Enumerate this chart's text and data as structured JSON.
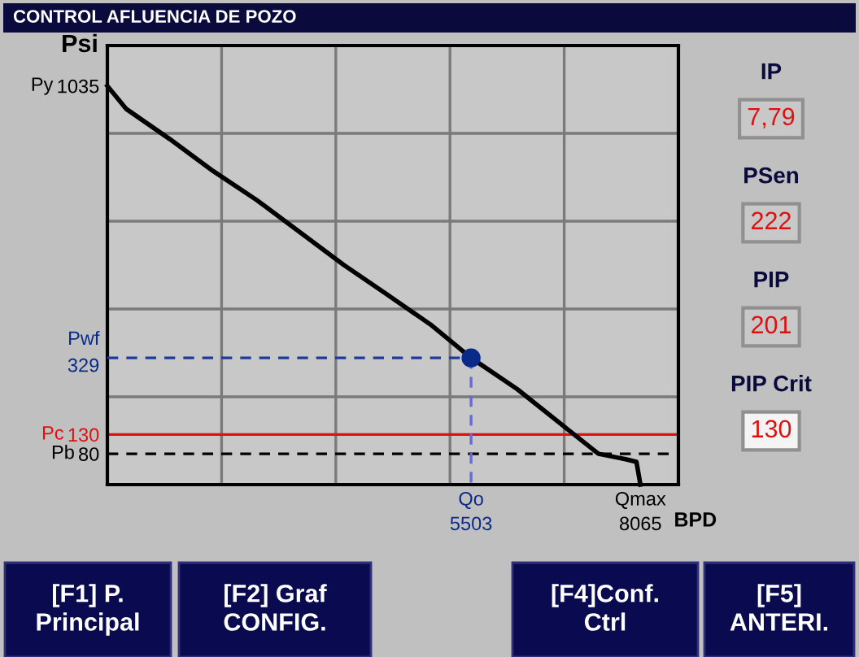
{
  "chart_data": [
    {
      "type": "line",
      "title": "CONTROL AFLUENCIA DE POZO",
      "xlabel": "BPD",
      "ylabel": "Psi",
      "xlim": [
        0,
        8640
      ],
      "ylim": [
        0,
        1140
      ],
      "xticks": [
        {
          "value": 1728,
          "label": null
        },
        {
          "value": 3456,
          "label": null
        },
        {
          "value": 5184,
          "label": null
        },
        {
          "value": 6912,
          "label": null
        },
        5503,
        8065
      ],
      "yticks": [
        {
          "value": 228,
          "label": null
        },
        {
          "value": 456,
          "label": null
        },
        {
          "value": 684,
          "label": null
        },
        {
          "value": 912,
          "label": null
        },
        1035,
        329,
        130,
        80
      ],
      "grid": true,
      "series": [
        {
          "type": "line",
          "color": "#000000",
          "x": [
            0,
            288,
            945,
            1601,
            2259,
            2916,
            3571,
            4229,
            4887,
            5503,
            6200,
            7020,
            7431,
            7842,
            8005,
            8065
          ],
          "values": [
            1035,
            975,
            897,
            814,
            739,
            655,
            571,
            494,
            416,
            329,
            248,
            136,
            80,
            66,
            59,
            0
          ]
        },
        {
          "type": "line",
          "color": "#1f3a9a",
          "line_style": "dashed",
          "x": [
            0,
            5503
          ],
          "values": [
            329,
            329
          ]
        },
        {
          "type": "line",
          "color": "#6a6ad0",
          "line_style": "dashed",
          "x": [
            5503,
            5503
          ],
          "values": [
            329,
            0
          ]
        },
        {
          "type": "scatter",
          "color": "#0a2a8a",
          "marker": "circle",
          "x": [
            5503
          ],
          "values": [
            329
          ]
        }
      ],
      "ref_lines": [
        {
          "axis": "y",
          "value": 130,
          "color": "#e01010",
          "line_style": "solid"
        },
        {
          "axis": "y",
          "value": 80,
          "color": "#000000",
          "line_style": "dashed"
        }
      ],
      "annotations": [
        {
          "text": "Py",
          "x": 0,
          "y": 1035
        },
        {
          "text": "Pwf",
          "x": 0,
          "y": 329
        },
        {
          "text": "Pc",
          "x": 0,
          "y": 130
        },
        {
          "text": "Pb",
          "x": 0,
          "y": 80
        },
        {
          "text": "Qo",
          "x": 5503,
          "y": 0
        },
        {
          "text": "Qmax",
          "x": 8065,
          "y": 0
        }
      ]
    },
    {
      "type": "other",
      "annotations": [
        "IP",
        "7,79",
        "PSen",
        "222",
        "PIP",
        "201",
        "PIP Crit",
        "130",
        "[F1] P.\nPrincipal",
        "[F2] Graf\nCONFIG.",
        "[F4]Conf.\nCtrl",
        "[F5]\nANTERI."
      ]
    }
  ]
}
